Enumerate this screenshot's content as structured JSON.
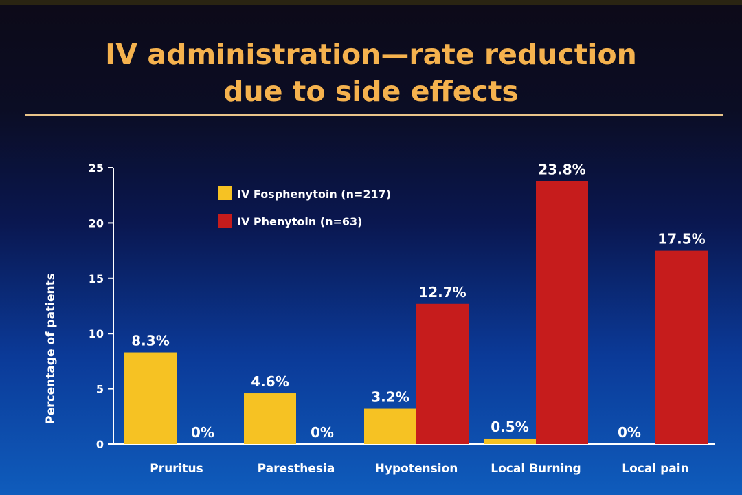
{
  "slide": {
    "title_lines": [
      "IV administration—rate reduction",
      "due to side effects"
    ]
  },
  "chart_data": {
    "type": "bar",
    "title": "IV administration—rate reduction due to side effects",
    "xlabel": "",
    "ylabel": "Percentage of patients",
    "ylim": [
      0,
      25
    ],
    "yticks": [
      0,
      5,
      10,
      15,
      20,
      25
    ],
    "categories": [
      "Pruritus",
      "Paresthesia",
      "Hypotension",
      "Local Burning",
      "Local pain"
    ],
    "series": [
      {
        "name": "IV Fosphenytoin (n=217)",
        "color": "#f6c223",
        "values": [
          8.3,
          4.6,
          3.2,
          0.5,
          0
        ],
        "labels": [
          "8.3%",
          "4.6%",
          "3.2%",
          "0.5%",
          "0%"
        ]
      },
      {
        "name": "IV Phenytoin (n=63)",
        "color": "#c61c1c",
        "values": [
          0,
          0,
          12.7,
          23.8,
          17.5
        ],
        "labels": [
          "0%",
          "0%",
          "12.7%",
          "23.8%",
          "17.5%"
        ]
      }
    ],
    "legend_position": "top-left",
    "grid": false
  }
}
